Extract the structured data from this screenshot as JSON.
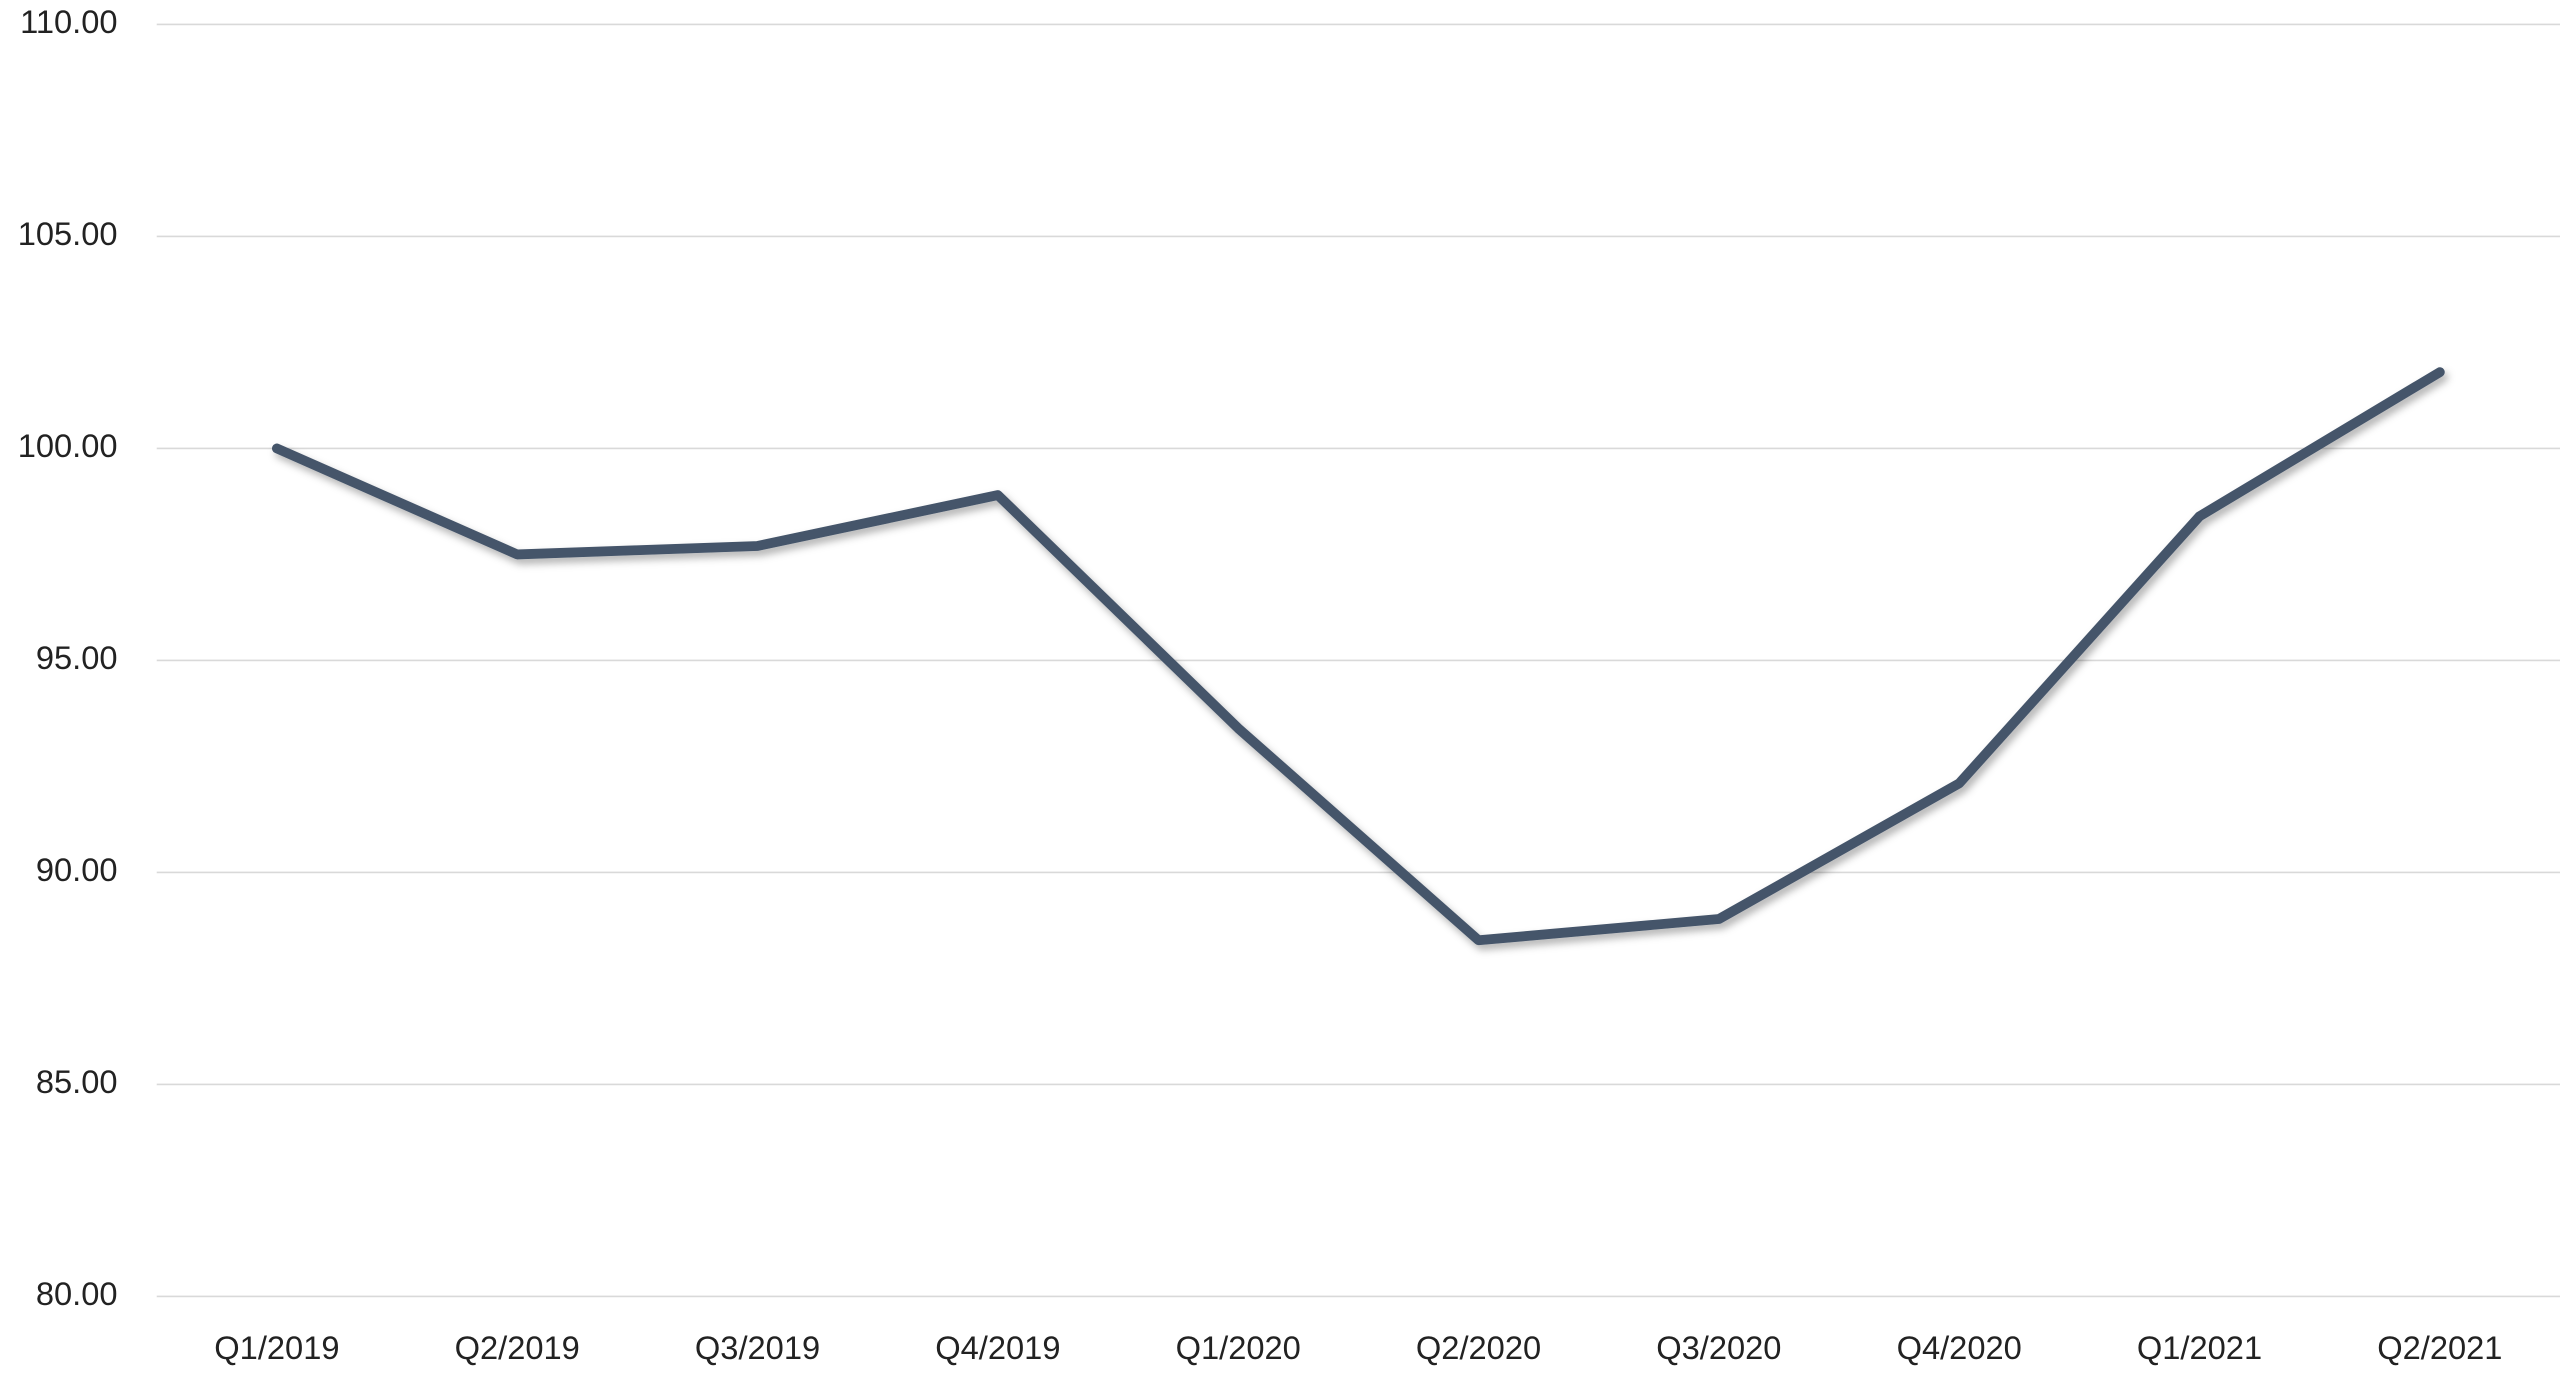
{
  "chart_data": {
    "type": "line",
    "categories": [
      "Q1/2019",
      "Q2/2019",
      "Q3/2019",
      "Q4/2019",
      "Q1/2020",
      "Q2/2020",
      "Q3/2020",
      "Q4/2020",
      "Q1/2021",
      "Q2/2021"
    ],
    "series": [
      {
        "color": "#44546a",
        "values": [
          100.0,
          97.5,
          97.7,
          98.9,
          93.4,
          88.4,
          88.9,
          92.1,
          98.4,
          101.8
        ]
      }
    ],
    "ylim": [
      80,
      110
    ],
    "yticks": [
      {
        "value": 80,
        "label": "80.00"
      },
      {
        "value": 85,
        "label": "85.00"
      },
      {
        "value": 90,
        "label": "90.00"
      },
      {
        "value": 95,
        "label": "95.00"
      },
      {
        "value": 100,
        "label": "100.00"
      },
      {
        "value": 105,
        "label": "105.00"
      },
      {
        "value": 110,
        "label": "110.00"
      }
    ],
    "grid": true
  }
}
